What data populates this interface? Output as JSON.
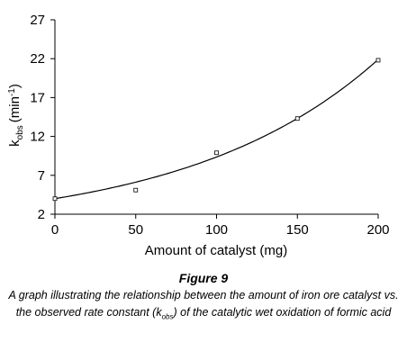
{
  "chart_data": {
    "type": "scatter",
    "xlabel": "Amount of catalyst (mg)",
    "ylabel": {
      "main": "k",
      "sub": "obs",
      "unit": "(min",
      "sup": "-1",
      "close": ")"
    },
    "xlim": [
      0,
      200
    ],
    "ylim": [
      2,
      27
    ],
    "xticks": [
      "0",
      "50",
      "100",
      "150",
      "200"
    ],
    "yticks": [
      "2",
      "7",
      "12",
      "17",
      "22",
      "27"
    ],
    "grid": false,
    "points": [
      {
        "x": 0,
        "y": 4.0
      },
      {
        "x": 50,
        "y": 5.1
      },
      {
        "x": 100,
        "y": 9.9
      },
      {
        "x": 150,
        "y": 14.3
      },
      {
        "x": 200,
        "y": 21.8
      }
    ],
    "trendline": {
      "type": "exponential",
      "a": 4.0,
      "b": 0.0085
    }
  },
  "caption": {
    "figure_label": "Figure 9",
    "text_before": "A graph illustrating the relationship between the amount of iron ore catalyst vs. the observed rate constant (k",
    "text_sub": "obs",
    "text_after": ") of the catalytic wet oxidation of formic acid"
  }
}
